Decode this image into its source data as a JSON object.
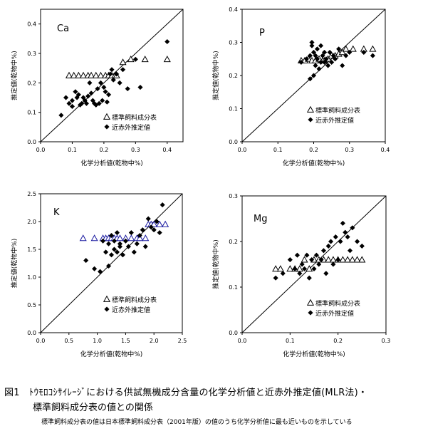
{
  "figure": {
    "caption_title": "図1　ﾄｳﾓﾛｺｼｻｲﾚｰｼﾞにおける供試無機成分含量の化学分析値と近赤外推定値(MLR法)・",
    "caption_title_cont": "標準飼料成分表の値との関係",
    "caption_note": "標準飼料成分表の値は日本標準飼料成分表（2001年版）の値のうち化学分析値に最も近いものを示している"
  },
  "chart_data": [
    {
      "type": "scatter",
      "title": "Ca",
      "xlabel": "化学分析値(乾物中%)",
      "ylabel": "推定値(乾物中%)",
      "xlim": [
        0,
        0.45
      ],
      "ylim": [
        0,
        0.45
      ],
      "xticks": [
        "0.0",
        "0.1",
        "0.2",
        "0.3",
        "0.4"
      ],
      "yticks": [
        "0.0",
        "0.1",
        "0.2",
        "0.3",
        "0.4"
      ],
      "xtick_values": [
        0,
        0.1,
        0.2,
        0.3,
        0.4
      ],
      "ytick_values": [
        0,
        0.1,
        0.2,
        0.3,
        0.4
      ],
      "legend_position": "bottom-right",
      "series": [
        {
          "name": "標準飼料成分表",
          "marker": "triangle-open",
          "color": "#000000",
          "x": [
            0.09,
            0.105,
            0.12,
            0.135,
            0.15,
            0.16,
            0.175,
            0.19,
            0.205,
            0.215,
            0.225,
            0.235,
            0.24,
            0.26,
            0.285,
            0.33,
            0.4
          ],
          "y": [
            0.225,
            0.225,
            0.225,
            0.225,
            0.225,
            0.225,
            0.225,
            0.225,
            0.225,
            0.225,
            0.225,
            0.225,
            0.225,
            0.27,
            0.28,
            0.28,
            0.28
          ]
        },
        {
          "name": "近赤外推定値",
          "marker": "diamond",
          "color": "#000000",
          "x": [
            0.065,
            0.08,
            0.09,
            0.1,
            0.1,
            0.11,
            0.115,
            0.12,
            0.125,
            0.13,
            0.135,
            0.14,
            0.145,
            0.15,
            0.155,
            0.16,
            0.165,
            0.17,
            0.175,
            0.18,
            0.185,
            0.19,
            0.195,
            0.2,
            0.205,
            0.21,
            0.215,
            0.22,
            0.225,
            0.23,
            0.24,
            0.25,
            0.26,
            0.275,
            0.3,
            0.315,
            0.4
          ],
          "y": [
            0.09,
            0.15,
            0.13,
            0.14,
            0.12,
            0.17,
            0.15,
            0.16,
            0.125,
            0.13,
            0.15,
            0.14,
            0.13,
            0.155,
            0.2,
            0.165,
            0.14,
            0.13,
            0.125,
            0.18,
            0.13,
            0.2,
            0.14,
            0.185,
            0.17,
            0.135,
            0.16,
            0.23,
            0.245,
            0.21,
            0.23,
            0.2,
            0.245,
            0.18,
            0.28,
            0.185,
            0.34
          ]
        }
      ]
    },
    {
      "type": "scatter",
      "title": "P",
      "xlabel": "化学分析値(乾物中%)",
      "ylabel": "推定値(乾物中%)",
      "xlim": [
        0,
        0.4
      ],
      "ylim": [
        0,
        0.4
      ],
      "xticks": [
        "0.0",
        "0.1",
        "0.2",
        "0.3",
        "0.4"
      ],
      "yticks": [
        "0.0",
        "0.1",
        "0.2",
        "0.3",
        "0.4"
      ],
      "xtick_values": [
        0,
        0.1,
        0.2,
        0.3,
        0.4
      ],
      "ytick_values": [
        0,
        0.1,
        0.2,
        0.3,
        0.4
      ],
      "legend_position": "bottom-right",
      "series": [
        {
          "name": "標準飼料成分表",
          "marker": "triangle-open",
          "color": "#000000",
          "x": [
            0.165,
            0.175,
            0.185,
            0.195,
            0.205,
            0.215,
            0.225,
            0.23,
            0.24,
            0.25,
            0.26,
            0.27,
            0.28,
            0.29,
            0.31,
            0.34,
            0.365
          ],
          "y": [
            0.245,
            0.245,
            0.25,
            0.245,
            0.245,
            0.25,
            0.245,
            0.245,
            0.25,
            0.26,
            0.26,
            0.265,
            0.27,
            0.28,
            0.28,
            0.28,
            0.28
          ]
        },
        {
          "name": "近赤外推定値",
          "marker": "diamond",
          "color": "#000000",
          "x": [
            0.165,
            0.18,
            0.19,
            0.19,
            0.195,
            0.195,
            0.2,
            0.2,
            0.205,
            0.205,
            0.21,
            0.21,
            0.215,
            0.22,
            0.22,
            0.225,
            0.23,
            0.23,
            0.235,
            0.24,
            0.245,
            0.25,
            0.255,
            0.26,
            0.27,
            0.28,
            0.29,
            0.3,
            0.34,
            0.365
          ],
          "y": [
            0.24,
            0.25,
            0.19,
            0.26,
            0.29,
            0.3,
            0.2,
            0.27,
            0.23,
            0.26,
            0.25,
            0.28,
            0.22,
            0.24,
            0.29,
            0.26,
            0.24,
            0.27,
            0.25,
            0.23,
            0.27,
            0.24,
            0.26,
            0.25,
            0.28,
            0.23,
            0.26,
            0.27,
            0.27,
            0.26
          ]
        }
      ]
    },
    {
      "type": "scatter",
      "title": "K",
      "xlabel": "化学分析値(乾物中%)",
      "ylabel": "推定値(乾物中%)",
      "xlim": [
        0,
        2.5
      ],
      "ylim": [
        0,
        2.5
      ],
      "xticks": [
        "0.0",
        "0.5",
        "1.0",
        "1.5",
        "2.0",
        "2.5"
      ],
      "yticks": [
        "0.0",
        "0.5",
        "1.0",
        "1.5",
        "2.0",
        "2.5"
      ],
      "xtick_values": [
        0,
        0.5,
        1.0,
        1.5,
        2.0,
        2.5
      ],
      "ytick_values": [
        0,
        0.5,
        1.0,
        1.5,
        2.0,
        2.5
      ],
      "legend_position": "bottom-right",
      "series": [
        {
          "name": "標準飼料成分表",
          "marker": "triangle-open",
          "color": "#1a1aa0",
          "x": [
            0.75,
            0.95,
            1.1,
            1.15,
            1.2,
            1.25,
            1.3,
            1.35,
            1.4,
            1.5,
            1.6,
            1.7,
            1.75,
            1.85,
            1.9,
            1.95,
            2.0,
            2.1,
            2.2
          ],
          "y": [
            1.7,
            1.7,
            1.7,
            1.7,
            1.7,
            1.7,
            1.7,
            1.7,
            1.7,
            1.7,
            1.7,
            1.7,
            1.7,
            1.7,
            1.95,
            1.95,
            1.95,
            1.95,
            1.95
          ]
        },
        {
          "name": "近赤外推定値",
          "marker": "diamond",
          "color": "#000000",
          "x": [
            0.8,
            0.95,
            1.05,
            1.1,
            1.15,
            1.2,
            1.2,
            1.25,
            1.25,
            1.3,
            1.3,
            1.35,
            1.35,
            1.4,
            1.4,
            1.45,
            1.5,
            1.55,
            1.6,
            1.65,
            1.7,
            1.75,
            1.8,
            1.85,
            1.9,
            1.95,
            2.0,
            2.05,
            2.1,
            2.15
          ],
          "y": [
            1.3,
            1.15,
            1.1,
            1.65,
            1.45,
            1.2,
            1.6,
            1.4,
            1.75,
            1.5,
            1.65,
            1.45,
            1.8,
            1.55,
            1.6,
            1.4,
            1.65,
            1.55,
            1.8,
            1.45,
            1.6,
            1.75,
            1.85,
            1.55,
            2.05,
            1.9,
            1.85,
            2.0,
            1.8,
            2.3
          ]
        }
      ]
    },
    {
      "type": "scatter",
      "title": "Mg",
      "xlabel": "化学分析値(乾物中%)",
      "ylabel": "推定値(乾物中%)",
      "xlim": [
        0,
        0.3
      ],
      "ylim": [
        0,
        0.3
      ],
      "xticks": [
        "0.0",
        "0.1",
        "0.2",
        "0.3"
      ],
      "yticks": [
        "0.0",
        "0.1",
        "0.2",
        "0.3"
      ],
      "xtick_values": [
        0,
        0.1,
        0.2,
        0.3
      ],
      "ytick_values": [
        0,
        0.1,
        0.2,
        0.3
      ],
      "legend_position": "bottom-right",
      "series": [
        {
          "name": "標準飼料成分表",
          "marker": "triangle-open",
          "color": "#000000",
          "x": [
            0.07,
            0.08,
            0.1,
            0.11,
            0.12,
            0.13,
            0.14,
            0.15,
            0.16,
            0.17,
            0.18,
            0.19,
            0.2,
            0.21,
            0.22,
            0.23,
            0.24,
            0.25
          ],
          "y": [
            0.14,
            0.14,
            0.14,
            0.14,
            0.14,
            0.16,
            0.14,
            0.16,
            0.16,
            0.16,
            0.16,
            0.16,
            0.16,
            0.16,
            0.16,
            0.16,
            0.16,
            0.16
          ]
        },
        {
          "name": "近赤外推定値",
          "marker": "diamond",
          "color": "#000000",
          "x": [
            0.07,
            0.085,
            0.1,
            0.11,
            0.115,
            0.12,
            0.125,
            0.13,
            0.135,
            0.14,
            0.145,
            0.15,
            0.155,
            0.16,
            0.165,
            0.17,
            0.175,
            0.18,
            0.185,
            0.19,
            0.195,
            0.2,
            0.205,
            0.21,
            0.215,
            0.22,
            0.225,
            0.23,
            0.24,
            0.25
          ],
          "y": [
            0.12,
            0.13,
            0.16,
            0.14,
            0.17,
            0.13,
            0.15,
            0.14,
            0.17,
            0.12,
            0.16,
            0.14,
            0.17,
            0.15,
            0.16,
            0.18,
            0.13,
            0.19,
            0.2,
            0.15,
            0.21,
            0.16,
            0.2,
            0.24,
            0.22,
            0.21,
            0.18,
            0.23,
            0.2,
            0.19
          ]
        }
      ]
    }
  ]
}
